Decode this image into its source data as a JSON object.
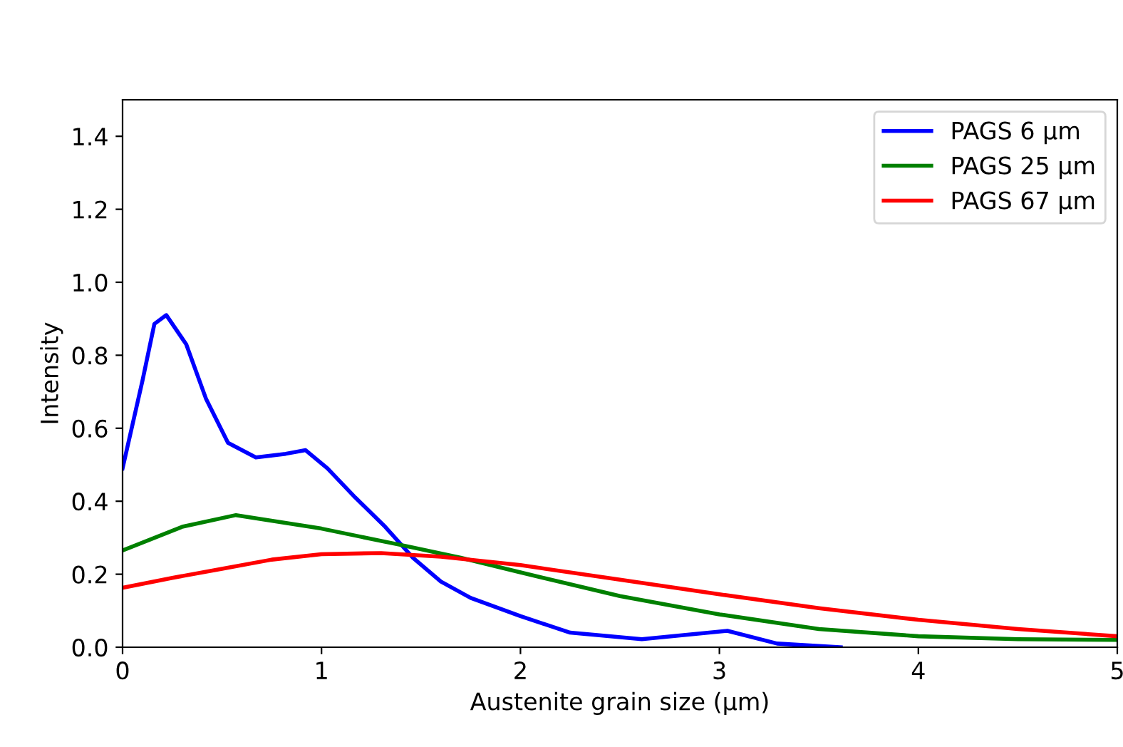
{
  "chart_data": {
    "type": "line",
    "xlabel": "Austenite grain size (μm)",
    "ylabel": "Intensity",
    "xlim": [
      0,
      5
    ],
    "ylim": [
      0,
      1.5
    ],
    "xticks": [
      0,
      1,
      2,
      3,
      4,
      5
    ],
    "yticks": [
      {
        "value": 0,
        "label": "0.0"
      },
      0.2,
      0.4,
      0.6,
      0.8,
      {
        "value": 1,
        "label": "1.0"
      },
      1.2,
      1.4
    ],
    "grid": false,
    "legend": "top right",
    "line_style": "solid",
    "series": [
      {
        "name": "PAGS 6 μm",
        "color": "#0000ff",
        "x": [
          0,
          0.1,
          0.16,
          0.22,
          0.32,
          0.42,
          0.53,
          0.67,
          0.82,
          0.92,
          1.03,
          1.17,
          1.32,
          1.46,
          1.6,
          1.75,
          2.0,
          2.25,
          2.61,
          3.04,
          3.29,
          3.61
        ],
        "values": [
          0.49,
          0.73,
          0.886,
          0.91,
          0.83,
          0.68,
          0.56,
          0.52,
          0.53,
          0.54,
          0.49,
          0.41,
          0.33,
          0.245,
          0.18,
          0.135,
          0.085,
          0.04,
          0.022,
          0.045,
          0.01,
          0.0
        ]
      },
      {
        "name": "PAGS 25 μm",
        "color": "#008000",
        "x": [
          0,
          0.3,
          0.57,
          1.0,
          1.4,
          1.7,
          2.0,
          2.5,
          3.0,
          3.5,
          4.0,
          4.5,
          5.0
        ],
        "values": [
          0.265,
          0.33,
          0.362,
          0.325,
          0.28,
          0.245,
          0.205,
          0.14,
          0.09,
          0.05,
          0.03,
          0.022,
          0.02
        ]
      },
      {
        "name": "PAGS 67 μm",
        "color": "#ff0000",
        "x": [
          0,
          0.25,
          0.5,
          0.75,
          1.0,
          1.3,
          1.6,
          2.0,
          2.5,
          3.0,
          3.5,
          4.0,
          4.5,
          5.0
        ],
        "values": [
          0.163,
          0.19,
          0.215,
          0.24,
          0.255,
          0.258,
          0.248,
          0.225,
          0.185,
          0.145,
          0.107,
          0.075,
          0.05,
          0.03
        ]
      }
    ]
  }
}
